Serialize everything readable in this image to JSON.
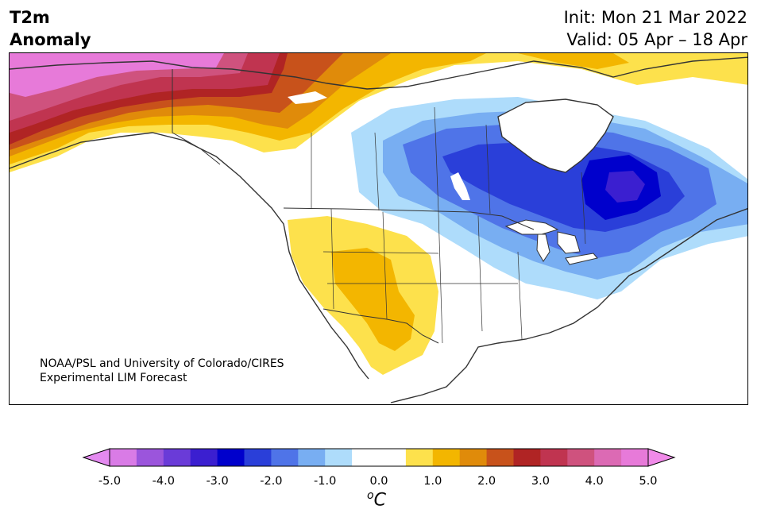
{
  "header": {
    "title_line1": "T2m",
    "title_line2": "Anomaly",
    "init": "Init: Mon 21 Mar 2022",
    "valid": "Valid: 05 Apr – 18 Apr"
  },
  "credit": {
    "line1": "NOAA/PSL and University of Colorado/CIRES",
    "line2": "Experimental LIM Forecast"
  },
  "colorbar": {
    "unit_prefix": "o",
    "unit_symbol": "C",
    "ticks": [
      "-5.0",
      "-4.0",
      "-3.0",
      "-2.0",
      "-1.0",
      "0.0",
      "1.0",
      "2.0",
      "3.0",
      "4.0",
      "5.0"
    ],
    "colors": [
      "#d97be6",
      "#9b55dc",
      "#6a3bd8",
      "#3b1fd0",
      "#0000cc",
      "#2a3fd9",
      "#4f74e8",
      "#78aef2",
      "#aedcfb",
      "#ffffff",
      "#ffffff",
      "#fde14c",
      "#f3b600",
      "#e08b0a",
      "#c8521b",
      "#b02424",
      "#c03450",
      "#cf527e",
      "#dc6ab4",
      "#e77ad9"
    ],
    "under_color": "#e48af0",
    "over_color": "#f08ae8"
  },
  "map": {
    "colors": {
      "land_bg": "#ffffff",
      "border": "#333333",
      "warm_yellow": "#fde14c",
      "warm_gold": "#f3b600",
      "warm_orange": "#e08b0a",
      "warm_rust": "#c8521b",
      "warm_red": "#b02424",
      "warm_crimson": "#c03450",
      "warm_pink": "#cf527e",
      "warm_magenta": "#e77ad9",
      "cool_pale": "#aedcfb",
      "cool_light": "#78aef2",
      "cool_mid": "#4f74e8",
      "cool_blue": "#2a3fd9",
      "cool_deep": "#0000cc",
      "cool_violet": "#3b1fd0"
    }
  }
}
